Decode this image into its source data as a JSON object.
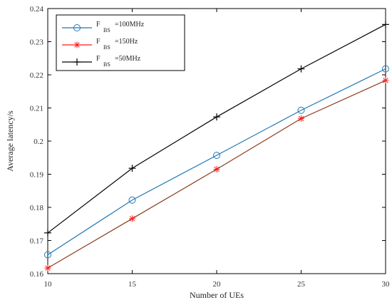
{
  "chart_data": {
    "type": "line",
    "xlabel": "Number of UEs",
    "ylabel": "Average latency/s",
    "x": [
      10,
      15,
      20,
      25,
      30
    ],
    "xticks": [
      "10",
      "15",
      "20",
      "25",
      "30"
    ],
    "yticks": [
      "0.16",
      "0.17",
      "0.18",
      "0.19",
      "0.2",
      "0.21",
      "0.22",
      "0.23",
      "0.24"
    ],
    "xlim": [
      10,
      30
    ],
    "ylim": [
      0.16,
      0.24
    ],
    "grid": false,
    "legend_position": "top-left",
    "series": [
      {
        "name": "F_BS=100MHz",
        "name_main": "F",
        "name_sub": "BS",
        "name_rest": "=100MHz",
        "values": [
          0.1657,
          0.1822,
          0.1957,
          0.2093,
          0.2218
        ],
        "color": "#1f77b4",
        "marker": "circle"
      },
      {
        "name": "F_BS=150Hz",
        "name_main": "F",
        "name_sub": "BS",
        "name_rest": "=150Hz",
        "values": [
          0.1617,
          0.1766,
          0.1915,
          0.2068,
          0.2183
        ],
        "color": "#ff1a1a",
        "line_color": "#8b3a1a",
        "marker": "asterisk"
      },
      {
        "name": "F_BS=50MHz",
        "name_main": "F",
        "name_sub": "BS",
        "name_rest": "=50MHz",
        "values": [
          0.1723,
          0.1918,
          0.2073,
          0.2218,
          0.2352
        ],
        "color": "#000000",
        "marker": "plus"
      }
    ]
  }
}
